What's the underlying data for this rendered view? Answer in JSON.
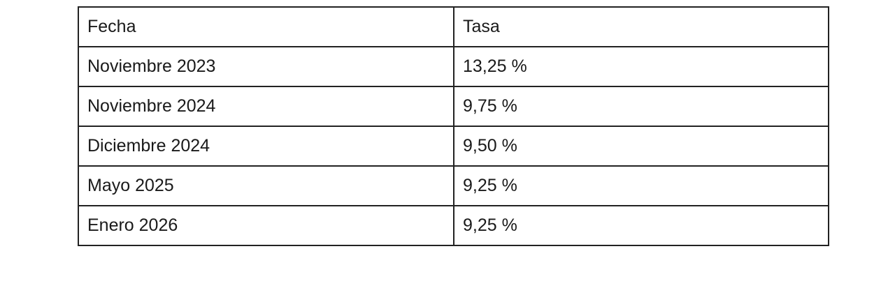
{
  "table": {
    "headers": [
      "Fecha",
      "Tasa"
    ],
    "rows": [
      [
        "Noviembre 2023",
        "13,25 %"
      ],
      [
        "Noviembre 2024",
        "9,75 %"
      ],
      [
        "Diciembre 2024",
        "9,50 %"
      ],
      [
        "Mayo 2025",
        "9,25 %"
      ],
      [
        "Enero 2026",
        "9,25 %"
      ]
    ]
  }
}
